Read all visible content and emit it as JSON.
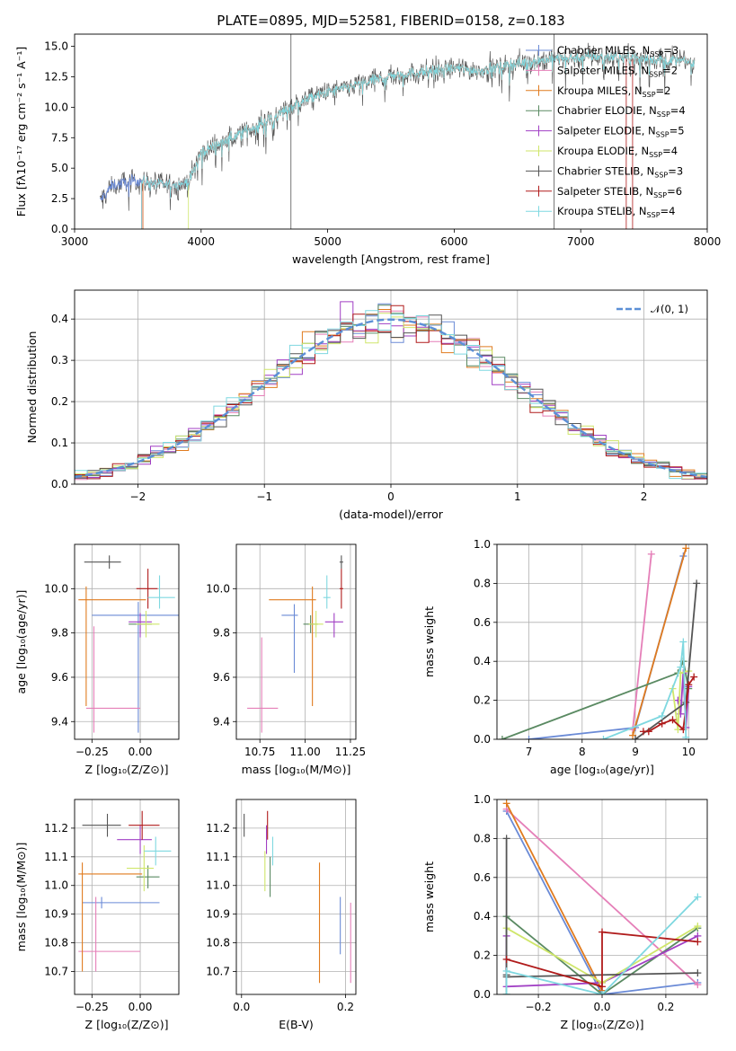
{
  "title": "PLATE=0895, MJD=52581, FIBERID=0158, z=0.183",
  "colors": {
    "Chabrier MILES": "#6a8ad6",
    "Salpeter MILES": "#e57fb8",
    "Kroupa MILES": "#e07b1f",
    "Chabrier ELODIE": "#5a8a62",
    "Salpeter ELODIE": "#a13fc4",
    "Kroupa ELODIE": "#cfe66a",
    "Chabrier STELIB": "#555555",
    "Salpeter STELIB": "#b01b1b",
    "Kroupa STELIB": "#7fd8e0",
    "normal": "#5b8fd6",
    "grid": "#b0b0b0"
  },
  "legend": [
    {
      "name": "Chabrier MILES",
      "base": "Chabrier MILES, N",
      "sub": "SSP",
      "tail": "=3"
    },
    {
      "name": "Salpeter MILES",
      "base": "Salpeter MILES, N",
      "sub": "SSP",
      "tail": "=2"
    },
    {
      "name": "Kroupa MILES",
      "base": "Kroupa MILES, N",
      "sub": "SSP",
      "tail": "=2"
    },
    {
      "name": "Chabrier ELODIE",
      "base": "Chabrier ELODIE, N",
      "sub": "SSP",
      "tail": "=4"
    },
    {
      "name": "Salpeter ELODIE",
      "base": "Salpeter ELODIE, N",
      "sub": "SSP",
      "tail": "=5"
    },
    {
      "name": "Kroupa ELODIE",
      "base": "Kroupa ELODIE, N",
      "sub": "SSP",
      "tail": "=4"
    },
    {
      "name": "Chabrier STELIB",
      "base": "Chabrier STELIB, N",
      "sub": "SSP",
      "tail": "=3"
    },
    {
      "name": "Salpeter STELIB",
      "base": "Salpeter STELIB, N",
      "sub": "SSP",
      "tail": "=6"
    },
    {
      "name": "Kroupa STELIB",
      "base": "Kroupa STELIB, N",
      "sub": "SSP",
      "tail": "=4"
    }
  ],
  "chart_data": [
    {
      "id": "spectrum",
      "type": "line",
      "xlabel": "wavelength [Angstrom, rest frame]",
      "ylabel": "Flux [fλ10⁻¹⁷ erg cm⁻² s⁻¹ A⁻¹]",
      "xlim": [
        3000,
        8000
      ],
      "ylim": [
        0,
        16
      ],
      "xticks": [
        "3000",
        "4000",
        "5000",
        "6000",
        "7000",
        "8000"
      ],
      "yticks": [
        "0.0",
        "2.5",
        "5.0",
        "7.5",
        "10.0",
        "12.5",
        "15.0"
      ],
      "data_range": [
        3200,
        7900
      ],
      "continuum": [
        [
          3200,
          2.3
        ],
        [
          3300,
          3.6
        ],
        [
          3500,
          4.0
        ],
        [
          3700,
          3.6
        ],
        [
          3900,
          3.8
        ],
        [
          4000,
          6.3
        ],
        [
          4100,
          6.8
        ],
        [
          4300,
          7.8
        ],
        [
          4500,
          8.8
        ],
        [
          4800,
          10.5
        ],
        [
          5000,
          11.2
        ],
        [
          5300,
          12.0
        ],
        [
          5500,
          12.6
        ],
        [
          6000,
          13.2
        ],
        [
          6200,
          13.0
        ],
        [
          6500,
          13.6
        ],
        [
          6800,
          14.0
        ],
        [
          7200,
          14.2
        ],
        [
          7500,
          14.0
        ],
        [
          7900,
          13.7
        ]
      ]
    },
    {
      "id": "residuals",
      "type": "histogram",
      "xlabel": "(data-model)/error",
      "ylabel": "Normed distribution",
      "xlim": [
        -2.5,
        2.5
      ],
      "ylim": [
        0,
        0.47
      ],
      "xticks": [
        "−2",
        "−1",
        "0",
        "1",
        "2"
      ],
      "yticks": [
        "0.0",
        "0.1",
        "0.2",
        "0.3",
        "0.4"
      ],
      "bin_width": 0.1,
      "normal_label": "𝒩(0, 1)"
    },
    {
      "id": "age_vs_Z",
      "type": "errorbar",
      "xlabel": "Z [log₁₀(Z/Z⊙)]",
      "ylabel": "age  [log₁₀(age/yr)]",
      "xlim": [
        -0.34,
        0.2
      ],
      "ylim": [
        9.32,
        10.2
      ],
      "xticks": [
        "−0.25",
        "0.00"
      ],
      "yticks": [
        "9.4",
        "9.6",
        "9.8",
        "10.0"
      ],
      "points": [
        {
          "series": "Chabrier MILES",
          "x": -0.01,
          "xerr": [
            0.24,
            0.23
          ],
          "y": 9.88,
          "yerr": [
            0.53,
            0.06
          ]
        },
        {
          "series": "Salpeter MILES",
          "x": -0.24,
          "xerr": [
            0.04,
            0.24
          ],
          "y": 9.46,
          "yerr": [
            0.11,
            0.37
          ]
        },
        {
          "series": "Kroupa MILES",
          "x": -0.28,
          "xerr": [
            0.04,
            0.31
          ],
          "y": 9.95,
          "yerr": [
            0.48,
            0.06
          ]
        },
        {
          "series": "Chabrier ELODIE",
          "x": 0.0,
          "xerr": [
            0.06,
            0.06
          ],
          "y": 9.84,
          "yerr": [
            0.04,
            0.04
          ]
        },
        {
          "series": "Salpeter ELODIE",
          "x": 0.0,
          "xerr": [
            0.06,
            0.06
          ],
          "y": 9.85,
          "yerr": [
            0.07,
            0.04
          ]
        },
        {
          "series": "Kroupa ELODIE",
          "x": 0.03,
          "xerr": [
            0.05,
            0.07
          ],
          "y": 9.84,
          "yerr": [
            0.06,
            0.06
          ]
        },
        {
          "series": "Chabrier STELIB",
          "x": -0.16,
          "xerr": [
            0.13,
            0.06
          ],
          "y": 10.12,
          "yerr": [
            0.03,
            0.03
          ]
        },
        {
          "series": "Salpeter STELIB",
          "x": 0.04,
          "xerr": [
            0.06,
            0.05
          ],
          "y": 10.0,
          "yerr": [
            0.09,
            0.09
          ]
        },
        {
          "series": "Kroupa STELIB",
          "x": 0.1,
          "xerr": [
            0.06,
            0.08
          ],
          "y": 9.96,
          "yerr": [
            0.05,
            0.1
          ]
        }
      ]
    },
    {
      "id": "age_vs_mass",
      "type": "errorbar",
      "xlabel": "mass [log₁₀(M/M⊙)]",
      "ylabel": "",
      "xlim": [
        10.62,
        11.28
      ],
      "ylim": [
        9.32,
        10.2
      ],
      "xticks": [
        "10.75",
        "11.00",
        "11.25"
      ],
      "yticks": [
        "9.4",
        "9.6",
        "9.8",
        "10.0"
      ],
      "points": [
        {
          "series": "Chabrier MILES",
          "x": 10.94,
          "xerr": [
            0.07,
            0.02
          ],
          "y": 9.88,
          "yerr": [
            0.26,
            0.05
          ]
        },
        {
          "series": "Salpeter MILES",
          "x": 10.76,
          "xerr": [
            0.08,
            0.09
          ],
          "y": 9.46,
          "yerr": [
            0.11,
            0.32
          ]
        },
        {
          "series": "Kroupa MILES",
          "x": 11.04,
          "xerr": [
            0.24,
            0.02
          ],
          "y": 9.95,
          "yerr": [
            0.48,
            0.06
          ]
        },
        {
          "series": "Chabrier ELODIE",
          "x": 11.03,
          "xerr": [
            0.04,
            0.04
          ],
          "y": 9.84,
          "yerr": [
            0.04,
            0.04
          ]
        },
        {
          "series": "Salpeter ELODIE",
          "x": 11.16,
          "xerr": [
            0.05,
            0.05
          ],
          "y": 9.85,
          "yerr": [
            0.07,
            0.04
          ]
        },
        {
          "series": "Kroupa ELODIE",
          "x": 11.06,
          "xerr": [
            0.04,
            0.04
          ],
          "y": 9.84,
          "yerr": [
            0.06,
            0.06
          ]
        },
        {
          "series": "Chabrier STELIB",
          "x": 11.2,
          "xerr": [
            0.01,
            0.01
          ],
          "y": 10.12,
          "yerr": [
            0.03,
            0.03
          ]
        },
        {
          "series": "Salpeter STELIB",
          "x": 11.2,
          "xerr": [
            0.01,
            0.01
          ],
          "y": 10.0,
          "yerr": [
            0.09,
            0.09
          ]
        },
        {
          "series": "Kroupa STELIB",
          "x": 11.12,
          "xerr": [
            0.02,
            0.02
          ],
          "y": 9.96,
          "yerr": [
            0.05,
            0.1
          ]
        }
      ]
    },
    {
      "id": "weight_vs_age",
      "type": "line",
      "xlabel": "age  [log₁₀(age/yr)]",
      "ylabel": "mass weight",
      "xlim": [
        6.4,
        10.35
      ],
      "ylim": [
        0,
        1
      ],
      "xticks": [
        "7",
        "8",
        "9",
        "10"
      ],
      "yticks": [
        "0.0",
        "0.2",
        "0.4",
        "0.6",
        "0.8",
        "1.0"
      ],
      "series": [
        {
          "name": "Chabrier MILES",
          "x": [
            7.0,
            9.0,
            9.9
          ],
          "y": [
            0.0,
            0.06,
            0.94
          ]
        },
        {
          "name": "Salpeter MILES",
          "x": [
            8.95,
            9.3
          ],
          "y": [
            0.05,
            0.95
          ]
        },
        {
          "name": "Kroupa MILES",
          "x": [
            8.95,
            9.95
          ],
          "y": [
            0.02,
            0.98
          ]
        },
        {
          "name": "Chabrier ELODIE",
          "x": [
            6.5,
            9.8,
            9.9,
            10.0
          ],
          "y": [
            0.0,
            0.34,
            0.4,
            0.26
          ]
        },
        {
          "name": "Salpeter ELODIE",
          "x": [
            9.8,
            9.85,
            9.9,
            9.95,
            10.0
          ],
          "y": [
            0.2,
            0.13,
            0.34,
            0.06,
            0.27
          ]
        },
        {
          "name": "Kroupa ELODIE",
          "x": [
            9.7,
            9.8,
            9.85,
            10.0
          ],
          "y": [
            0.26,
            0.05,
            0.34,
            0.35
          ]
        },
        {
          "name": "Chabrier STELIB",
          "x": [
            9.0,
            9.95,
            10.15
          ],
          "y": [
            0.0,
            0.19,
            0.8
          ]
        },
        {
          "name": "Salpeter STELIB",
          "x": [
            9.15,
            9.25,
            9.5,
            9.7,
            9.9,
            10.0,
            10.1
          ],
          "y": [
            0.04,
            0.04,
            0.08,
            0.1,
            0.05,
            0.28,
            0.32
          ]
        },
        {
          "name": "Kroupa STELIB",
          "x": [
            8.4,
            9.5,
            9.85,
            9.9,
            9.95
          ],
          "y": [
            0.0,
            0.12,
            0.37,
            0.5,
            0.01
          ]
        }
      ]
    },
    {
      "id": "mass_vs_Z",
      "type": "errorbar",
      "xlabel": "Z [log₁₀(Z/Z⊙)]",
      "ylabel": "mass [log₁₀(M/M⊙)]",
      "xlim": [
        -0.34,
        0.2
      ],
      "ylim": [
        10.62,
        11.3
      ],
      "xticks": [
        "−0.25",
        "0.00"
      ],
      "yticks": [
        "10.7",
        "10.8",
        "10.9",
        "11.0",
        "11.1",
        "11.2"
      ],
      "points": [
        {
          "series": "Chabrier MILES",
          "x": -0.2,
          "xerr": [
            0.1,
            0.3
          ],
          "y": 10.94,
          "yerr": [
            0.02,
            0.02
          ]
        },
        {
          "series": "Salpeter MILES",
          "x": -0.23,
          "xerr": [
            0.09,
            0.23
          ],
          "y": 10.77,
          "yerr": [
            0.07,
            0.19
          ]
        },
        {
          "series": "Kroupa MILES",
          "x": -0.3,
          "xerr": [
            0.02,
            0.31
          ],
          "y": 11.04,
          "yerr": [
            0.34,
            0.04
          ]
        },
        {
          "series": "Chabrier ELODIE",
          "x": 0.04,
          "xerr": [
            0.06,
            0.06
          ],
          "y": 11.03,
          "yerr": [
            0.04,
            0.04
          ]
        },
        {
          "series": "Salpeter ELODIE",
          "x": 0.0,
          "xerr": [
            0.12,
            0.06
          ],
          "y": 11.16,
          "yerr": [
            0.05,
            0.05
          ]
        },
        {
          "series": "Kroupa ELODIE",
          "x": 0.02,
          "xerr": [
            0.09,
            0.05
          ],
          "y": 11.06,
          "yerr": [
            0.08,
            0.08
          ]
        },
        {
          "series": "Chabrier STELIB",
          "x": -0.17,
          "xerr": [
            0.13,
            0.07
          ],
          "y": 11.21,
          "yerr": [
            0.04,
            0.04
          ]
        },
        {
          "series": "Salpeter STELIB",
          "x": 0.01,
          "xerr": [
            0.07,
            0.09
          ],
          "y": 11.21,
          "yerr": [
            0.05,
            0.05
          ]
        },
        {
          "series": "Kroupa STELIB",
          "x": 0.08,
          "xerr": [
            0.06,
            0.08
          ],
          "y": 11.12,
          "yerr": [
            0.05,
            0.05
          ]
        }
      ]
    },
    {
      "id": "mass_vs_ebv",
      "type": "errorbar",
      "xlabel": "E(B-V)",
      "ylabel": "",
      "xlim": [
        -0.01,
        0.22
      ],
      "ylim": [
        10.62,
        11.3
      ],
      "xticks": [
        "0.0",
        "0.2"
      ],
      "yticks": [
        "10.7",
        "10.8",
        "10.9",
        "11.0",
        "11.1",
        "11.2"
      ],
      "points": [
        {
          "series": "Chabrier MILES",
          "x": 0.19,
          "xerr": [
            0,
            0
          ],
          "y": 10.86,
          "yerr": [
            0.1,
            0.1
          ]
        },
        {
          "series": "Salpeter MILES",
          "x": 0.21,
          "xerr": [
            0,
            0
          ],
          "y": 10.8,
          "yerr": [
            0.14,
            0.14
          ]
        },
        {
          "series": "Kroupa MILES",
          "x": 0.15,
          "xerr": [
            0,
            0
          ],
          "y": 10.87,
          "yerr": [
            0.21,
            0.21
          ]
        },
        {
          "series": "Chabrier ELODIE",
          "x": 0.055,
          "xerr": [
            0,
            0
          ],
          "y": 11.03,
          "yerr": [
            0.07,
            0.07
          ]
        },
        {
          "series": "Salpeter ELODIE",
          "x": 0.048,
          "xerr": [
            0,
            0
          ],
          "y": 11.16,
          "yerr": [
            0.05,
            0.05
          ]
        },
        {
          "series": "Kroupa ELODIE",
          "x": 0.045,
          "xerr": [
            0,
            0
          ],
          "y": 11.05,
          "yerr": [
            0.07,
            0.07
          ]
        },
        {
          "series": "Chabrier STELIB",
          "x": 0.005,
          "xerr": [
            0,
            0
          ],
          "y": 11.21,
          "yerr": [
            0.04,
            0.04
          ]
        },
        {
          "series": "Salpeter STELIB",
          "x": 0.05,
          "xerr": [
            0,
            0
          ],
          "y": 11.21,
          "yerr": [
            0.05,
            0.05
          ]
        },
        {
          "series": "Kroupa STELIB",
          "x": 0.06,
          "xerr": [
            0,
            0
          ],
          "y": 11.12,
          "yerr": [
            0.05,
            0.05
          ]
        }
      ]
    },
    {
      "id": "weight_vs_Z",
      "type": "line",
      "xlabel": "Z [log₁₀(Z/Z⊙)]",
      "ylabel": "mass weight",
      "xlim": [
        -0.33,
        0.33
      ],
      "ylim": [
        0,
        1
      ],
      "xticks": [
        "−0.2",
        "0.0",
        "0.2"
      ],
      "yticks": [
        "0.0",
        "0.2",
        "0.4",
        "0.6",
        "0.8",
        "1.0"
      ],
      "series": [
        {
          "name": "Chabrier MILES",
          "x": [
            -0.3,
            0.0,
            0.3
          ],
          "y": [
            0.94,
            0.0,
            0.06
          ]
        },
        {
          "name": "Salpeter MILES",
          "x": [
            -0.3,
            0.3
          ],
          "y": [
            0.95,
            0.05
          ]
        },
        {
          "name": "Kroupa MILES",
          "x": [
            -0.3,
            0.0
          ],
          "y": [
            0.98,
            0.02
          ]
        },
        {
          "name": "Chabrier ELODIE",
          "x": [
            -0.3,
            -0.3,
            0.0,
            0.3
          ],
          "y": [
            0.0,
            0.4,
            0.0,
            0.34
          ]
        },
        {
          "name": "Salpeter ELODIE",
          "x": [
            -0.3,
            -0.3,
            0.0,
            0.3
          ],
          "y": [
            0.3,
            0.04,
            0.06,
            0.3
          ]
        },
        {
          "name": "Kroupa ELODIE",
          "x": [
            -0.3,
            0.0,
            0.3
          ],
          "y": [
            0.34,
            0.06,
            0.35
          ]
        },
        {
          "name": "Chabrier STELIB",
          "x": [
            -0.3,
            -0.3,
            -0.3,
            0.3
          ],
          "y": [
            0.8,
            0.1,
            0.09,
            0.11
          ]
        },
        {
          "name": "Salpeter STELIB",
          "x": [
            -0.3,
            0.0,
            0.0,
            0.3
          ],
          "y": [
            0.18,
            0.04,
            0.32,
            0.27
          ]
        },
        {
          "name": "Kroupa STELIB",
          "x": [
            -0.3,
            -0.3,
            0.0,
            0.3
          ],
          "y": [
            0.0,
            0.12,
            0.0,
            0.5
          ]
        }
      ]
    }
  ]
}
